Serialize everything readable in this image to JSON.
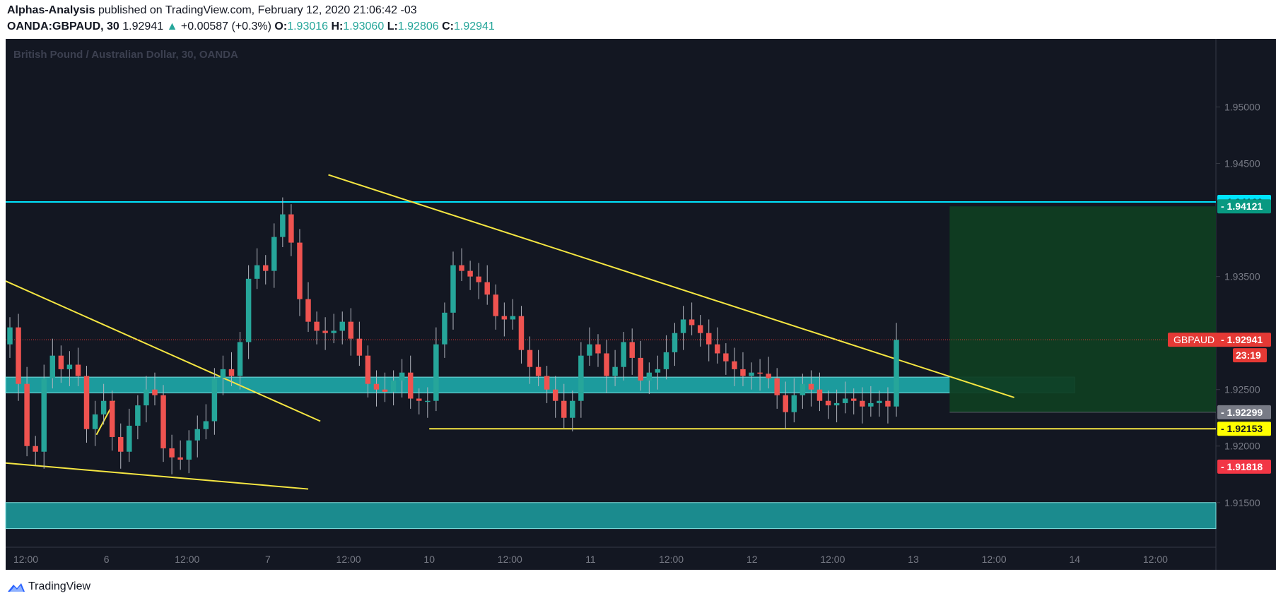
{
  "header": {
    "author": "Alphas-Analysis",
    "published": "published on TradingView.com, February 12, 2020 21:06:42 -03",
    "symbol": "OANDA:GBPAUD, 30",
    "last": "1.92941",
    "change": "+0.00587 (+0.3%)",
    "o_label": "O:",
    "o": "1.93016",
    "h_label": "H:",
    "h": "1.93060",
    "l_label": "L:",
    "l": "1.92806",
    "c_label": "C:",
    "c": "1.92941"
  },
  "chart_data": {
    "type": "candlestick",
    "title": "British Pound / Australian Dollar, 30, OANDA",
    "ylim": [
      1.91105,
      1.95603
    ],
    "y_ticks": [
      "1.95000",
      "1.94500",
      "1.93500",
      "1.92500",
      "1.92000",
      "1.91500"
    ],
    "x_ticks": [
      "12:00",
      "6",
      "12:00",
      "7",
      "12:00",
      "10",
      "12:00",
      "11",
      "12:00",
      "12",
      "12:00",
      "13",
      "12:00",
      "14",
      "12:00"
    ],
    "x_tick_slots": [
      1,
      5,
      9,
      13,
      17,
      21,
      25,
      29,
      33,
      37,
      41,
      45,
      49,
      53,
      57
    ],
    "x_slot_range": [
      0,
      60
    ],
    "closes": [
      1.9305,
      1.9255,
      1.92,
      1.9195,
      1.926,
      1.928,
      1.9268,
      1.9272,
      1.9262,
      1.9215,
      1.9228,
      1.924,
      1.9208,
      1.9195,
      1.9218,
      1.9236,
      1.925,
      1.9245,
      1.9198,
      1.919,
      1.9188,
      1.9205,
      1.9215,
      1.9222,
      1.926,
      1.9268,
      1.9262,
      1.9292,
      1.9348,
      1.936,
      1.9355,
      1.9385,
      1.9405,
      1.938,
      1.933,
      1.931,
      1.9302,
      1.93,
      1.9302,
      1.931,
      1.9295,
      1.928,
      1.9255,
      1.925,
      1.9248,
      1.9258,
      1.9265,
      1.9242,
      1.924,
      1.924,
      1.929,
      1.9318,
      1.936,
      1.9355,
      1.935,
      1.9345,
      1.9334,
      1.9315,
      1.9312,
      1.9315,
      1.9285,
      1.927,
      1.9262,
      1.925,
      1.924,
      1.9225,
      1.924,
      1.928,
      1.929,
      1.9282,
      1.9262,
      1.927,
      1.9292,
      1.9278,
      1.9258,
      1.9265,
      1.9268,
      1.9283,
      1.93,
      1.9312,
      1.9307,
      1.93,
      1.929,
      1.9282,
      1.9275,
      1.9268,
      1.9262,
      1.9265,
      1.9264,
      1.926,
      1.9245,
      1.923,
      1.9245,
      1.9255,
      1.925,
      1.924,
      1.9236,
      1.9238,
      1.9242,
      1.924,
      1.9235,
      1.9238,
      1.924,
      1.9235,
      1.9294
    ],
    "price_labels": [
      {
        "name": "cyan-level",
        "value": "1.94160",
        "price": 1.9416,
        "color": "#00e5ff",
        "text_color": "#131722"
      },
      {
        "name": "target",
        "value": "1.94121",
        "price": 1.94121,
        "color": "#089981",
        "text_color": "#ffffff"
      },
      {
        "name": "entry",
        "value": "1.92299",
        "price": 1.92299,
        "color": "#787b86",
        "text_color": "#ffffff"
      },
      {
        "name": "support",
        "value": "1.92153",
        "price": 1.92153,
        "color": "#ffff00",
        "text_color": "#131722"
      },
      {
        "name": "stop",
        "value": "1.91818",
        "price": 1.91818,
        "color": "#f23645",
        "text_color": "#ffffff"
      }
    ],
    "last_price": {
      "symbol": "GBPAUD",
      "value": "1.92941",
      "price": 1.92941,
      "countdown": "23:19",
      "color": "#e53935"
    },
    "annotations": {
      "horizontal_cyan": 1.9416,
      "support_line": {
        "price": 1.92153,
        "slots": [
          21,
          60
        ]
      },
      "zone_upper": {
        "from": 1.9247,
        "to": 1.9261,
        "slots": [
          0,
          53
        ]
      },
      "zone_lower": {
        "from": 1.9127,
        "to": 1.915,
        "slots": [
          0,
          60
        ]
      },
      "descending_trendline": {
        "slots": [
          16,
          50
        ],
        "prices": [
          1.944,
          1.9243
        ]
      },
      "left_trendline": {
        "slots": [
          0,
          15.6
        ],
        "prices": [
          1.9346,
          1.9222
        ]
      },
      "lower_trendline": {
        "slots": [
          0,
          15
        ],
        "prices": [
          1.9185,
          1.9162
        ]
      },
      "small_trendline": {
        "slots": [
          4.5,
          5.4
        ],
        "prices": [
          1.921,
          1.924
        ]
      },
      "position_reward": {
        "from": 1.92299,
        "to": 1.94121,
        "slots": [
          46.8,
          60
        ]
      },
      "position_risk": {
        "from": 1.91818,
        "to": 1.92299,
        "slots": [
          46.8,
          60
        ]
      }
    },
    "colors": {
      "background": "#131722",
      "up": "#26a69a",
      "down": "#ef5350",
      "axis_text": "#787b86",
      "trendline": "#f5e642",
      "zone": "#1fb3b3",
      "reward": "#0f3d22",
      "risk": "#4a1a22"
    }
  },
  "footer": {
    "brand": "TradingView"
  }
}
